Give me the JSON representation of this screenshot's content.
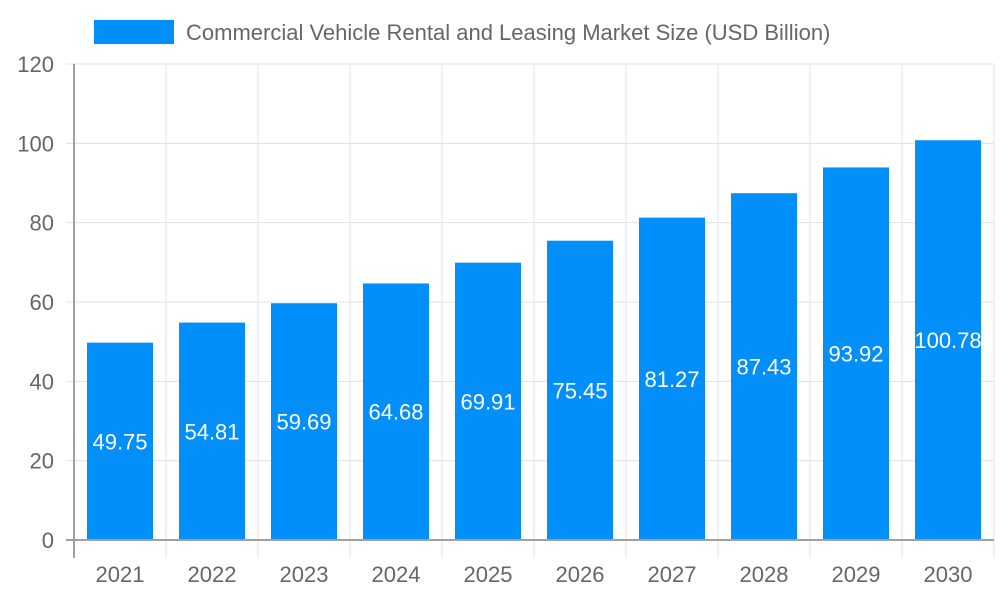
{
  "chart_data": {
    "type": "bar",
    "title": "",
    "xlabel": "",
    "ylabel": "",
    "categories": [
      "2021",
      "2022",
      "2023",
      "2024",
      "2025",
      "2026",
      "2027",
      "2028",
      "2029",
      "2030"
    ],
    "series": [
      {
        "name": "Commercial Vehicle Rental and Leasing Market Size (USD Billion)",
        "values": [
          49.75,
          54.81,
          59.69,
          64.68,
          69.91,
          75.45,
          81.27,
          87.43,
          93.92,
          100.78
        ]
      }
    ],
    "ylim": [
      0,
      120
    ],
    "yticks": [
      0,
      20,
      40,
      60,
      80,
      100,
      120
    ],
    "grid": true,
    "legend": "top",
    "data_labels": true,
    "colors": {
      "bar": "#038ffa",
      "grid": "#e0e0e0",
      "axis": "#a0a0a0",
      "tick_text": "#666666",
      "label_text": "#ffffff"
    }
  }
}
